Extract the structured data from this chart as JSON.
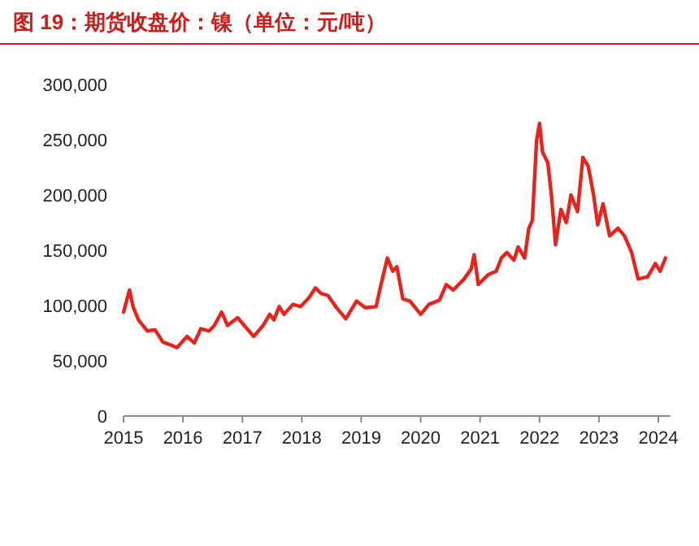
{
  "chart_data": {
    "type": "line",
    "title": "图 19：期货收盘价：镍（单位：元/吨）",
    "x": [
      2015.0,
      2015.1,
      2015.16,
      2015.25,
      2015.4,
      2015.53,
      2015.66,
      2015.9,
      2016.07,
      2016.19,
      2016.3,
      2016.44,
      2016.53,
      2016.65,
      2016.75,
      2016.92,
      2017.03,
      2017.19,
      2017.35,
      2017.46,
      2017.53,
      2017.62,
      2017.7,
      2017.85,
      2017.98,
      2018.12,
      2018.23,
      2018.32,
      2018.44,
      2018.57,
      2018.74,
      2018.92,
      2019.07,
      2019.25,
      2019.32,
      2019.44,
      2019.53,
      2019.6,
      2019.7,
      2019.82,
      2020.0,
      2020.14,
      2020.32,
      2020.43,
      2020.55,
      2020.73,
      2020.85,
      2020.9,
      2020.97,
      2021.14,
      2021.27,
      2021.36,
      2021.45,
      2021.57,
      2021.64,
      2021.75,
      2021.82,
      2021.88,
      2021.95,
      2022.0,
      2022.05,
      2022.14,
      2022.2,
      2022.27,
      2022.36,
      2022.45,
      2022.53,
      2022.64,
      2022.73,
      2022.82,
      2022.91,
      2022.98,
      2023.07,
      2023.18,
      2023.32,
      2023.43,
      2023.55,
      2023.66,
      2023.82,
      2023.95,
      2024.03,
      2024.12
    ],
    "series": [
      {
        "color": "#e8231e",
        "values": [
          94000,
          114000,
          99000,
          87000,
          77000,
          78000,
          67000,
          62000,
          72000,
          66000,
          79000,
          77000,
          82000,
          94000,
          82000,
          89000,
          82000,
          72000,
          82000,
          92000,
          87000,
          99000,
          92000,
          101000,
          99000,
          107000,
          116000,
          111000,
          109000,
          99000,
          88000,
          104000,
          98000,
          99000,
          116000,
          143000,
          131000,
          135000,
          106000,
          104000,
          92000,
          101000,
          105000,
          119000,
          114000,
          124000,
          133000,
          146000,
          119000,
          128000,
          131000,
          143000,
          148000,
          141000,
          153000,
          143000,
          170000,
          177000,
          249000,
          265000,
          239000,
          229000,
          200000,
          155000,
          187000,
          175000,
          200000,
          185000,
          234000,
          226000,
          200000,
          173000,
          192000,
          163000,
          170000,
          163000,
          148000,
          124000,
          126000,
          138000,
          131000,
          143000
        ]
      }
    ],
    "xlim": [
      2015,
      2024.2
    ],
    "xticks": [
      2015,
      2016,
      2017,
      2018,
      2019,
      2020,
      2021,
      2022,
      2023,
      2024
    ],
    "ylim": [
      0,
      300000
    ],
    "yticks": [
      {
        "value": 0,
        "label": "0"
      },
      {
        "value": 50000,
        "label": "50,000"
      },
      {
        "value": 100000,
        "label": "100,000"
      },
      {
        "value": 150000,
        "label": "150,000"
      },
      {
        "value": 200000,
        "label": "200,000"
      },
      {
        "value": 250000,
        "label": "250,000"
      },
      {
        "value": 300000,
        "label": "300,000"
      }
    ],
    "grid": false,
    "marker": "none",
    "line_style": "solid"
  }
}
